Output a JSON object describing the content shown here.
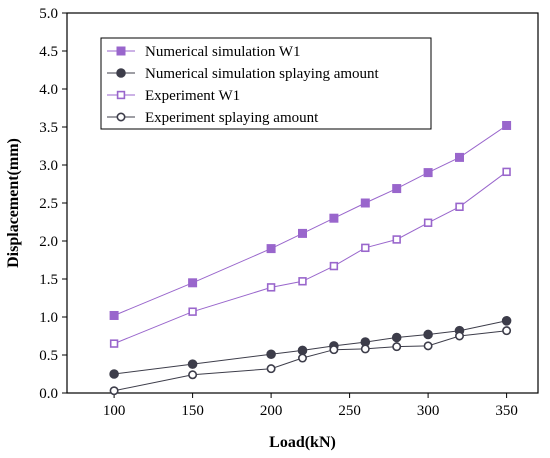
{
  "chart_data": {
    "type": "line",
    "title": "",
    "xlabel": "Load(kN)",
    "ylabel": "Displacement(mm)",
    "xlim": [
      70,
      370
    ],
    "ylim": [
      0,
      5
    ],
    "xticks": [
      100,
      150,
      200,
      250,
      300,
      350
    ],
    "xtick_labels": [
      "100",
      "150",
      "200",
      "250",
      "300",
      "350"
    ],
    "yticks": [
      0,
      0.5,
      1,
      1.5,
      2,
      2.5,
      3,
      3.5,
      4,
      4.5,
      5
    ],
    "ytick_labels": [
      "0.0",
      "0.5",
      "1.0",
      "1.5",
      "2.0",
      "2.5",
      "3.0",
      "3.5",
      "4.0",
      "4.5",
      "5.0"
    ],
    "grid": false,
    "legend_position": "top-left",
    "series": [
      {
        "name": "Numerical simulation W1",
        "marker": "square-filled",
        "color": "#9966cc",
        "x": [
          100,
          150,
          200,
          220,
          240,
          260,
          280,
          300,
          320,
          350
        ],
        "y": [
          1.02,
          1.45,
          1.9,
          2.1,
          2.3,
          2.5,
          2.69,
          2.9,
          3.1,
          3.52
        ]
      },
      {
        "name": "Numerical simulation splaying amount",
        "marker": "circle-filled",
        "color": "#3d3d4a",
        "x": [
          100,
          150,
          200,
          220,
          240,
          260,
          280,
          300,
          320,
          350
        ],
        "y": [
          0.25,
          0.38,
          0.51,
          0.56,
          0.62,
          0.67,
          0.73,
          0.77,
          0.82,
          0.95
        ]
      },
      {
        "name": "Experiment W1",
        "marker": "square-open",
        "color": "#9966cc",
        "x": [
          100,
          150,
          200,
          220,
          240,
          260,
          280,
          300,
          320,
          350
        ],
        "y": [
          0.65,
          1.07,
          1.39,
          1.47,
          1.67,
          1.91,
          2.02,
          2.24,
          2.45,
          2.91
        ]
      },
      {
        "name": "Experiment splaying amount",
        "marker": "circle-open",
        "color": "#3d3d4a",
        "x": [
          100,
          150,
          200,
          220,
          240,
          260,
          280,
          300,
          320,
          350
        ],
        "y": [
          0.03,
          0.24,
          0.32,
          0.46,
          0.57,
          0.58,
          0.61,
          0.62,
          0.75,
          0.82
        ]
      }
    ]
  }
}
